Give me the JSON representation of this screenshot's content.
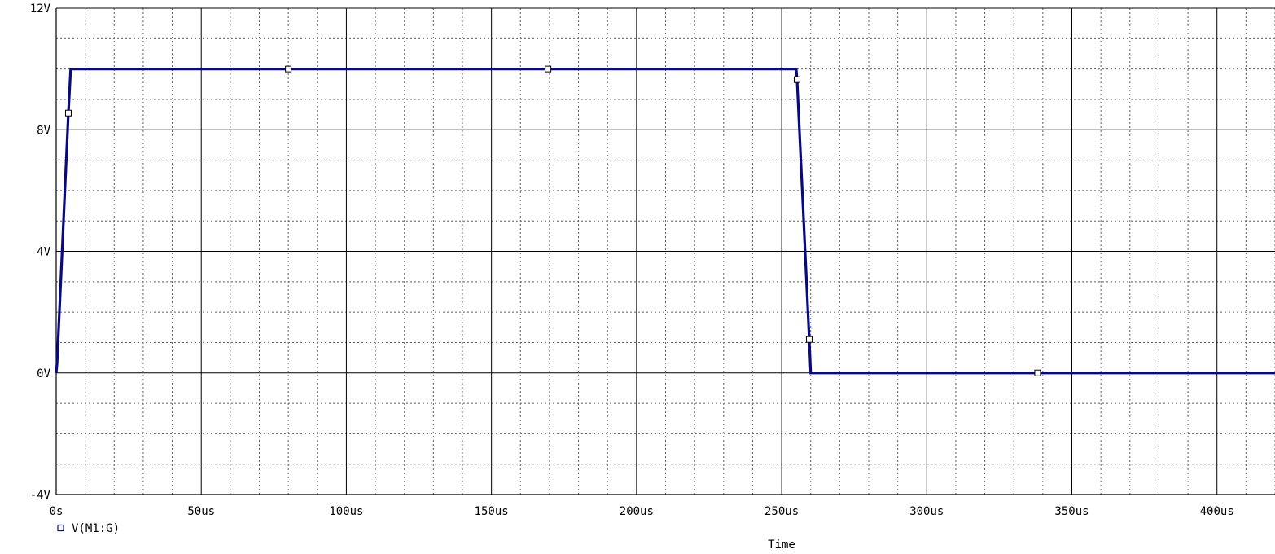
{
  "chart_data": {
    "type": "line",
    "xlabel": "Time",
    "ylabel": "",
    "xlim": [
      0,
      420
    ],
    "ylim": [
      -4,
      12
    ],
    "x_major_ticks": [
      0,
      50,
      100,
      150,
      200,
      250,
      300,
      350,
      400
    ],
    "x_tick_labels": [
      "0s",
      "50us",
      "100us",
      "150us",
      "200us",
      "250us",
      "300us",
      "350us",
      "400us"
    ],
    "x_minor_step": 10,
    "y_major_ticks": [
      -4,
      0,
      4,
      8,
      12
    ],
    "y_tick_labels": [
      "-4V",
      "0V",
      "4V",
      "8V",
      "12V"
    ],
    "y_minor_step": 1,
    "grid": true,
    "legend_position": "bottom-left",
    "series": [
      {
        "name": "V(M1:G)",
        "color": "#0a0a80",
        "x": [
          0,
          0.3,
          4.2,
          5,
          80,
          170,
          255,
          255.3,
          259.5,
          260,
          338,
          420
        ],
        "y": [
          0,
          0.3,
          8.55,
          10,
          10,
          10,
          10,
          9.65,
          1.1,
          0,
          0,
          0
        ],
        "markers": [
          {
            "x": 4.2,
            "y": 8.55
          },
          {
            "x": 80,
            "y": 10
          },
          {
            "x": 169.5,
            "y": 10
          },
          {
            "x": 255.3,
            "y": 9.65
          },
          {
            "x": 259.5,
            "y": 1.1
          },
          {
            "x": 338.2,
            "y": 0
          }
        ]
      }
    ]
  }
}
